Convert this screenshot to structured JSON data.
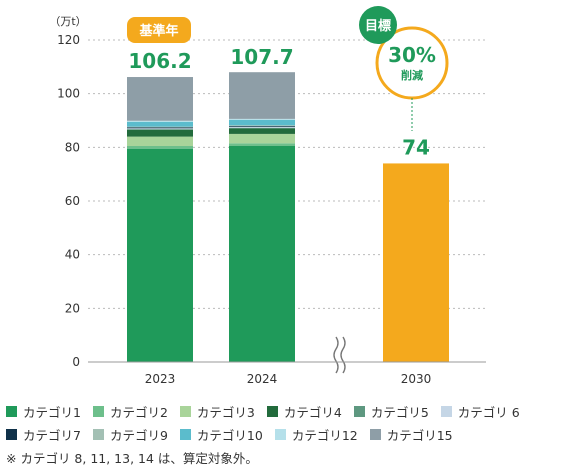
{
  "chart_data": {
    "type": "bar",
    "stacked": true,
    "unit_label": "（万t）",
    "ylim": [
      0,
      120
    ],
    "yticks": [
      "0",
      "20",
      "40",
      "60",
      "80",
      "100",
      "120"
    ],
    "categories": [
      "2023",
      "2024",
      "2030"
    ],
    "totals": [
      "106.2",
      "107.7",
      "74"
    ],
    "baseline_badge": "基準年",
    "target_badge": "目標",
    "reduction_pct": "30%",
    "reduction_label": "削減",
    "axis_break": true,
    "series": [
      {
        "name": "カテゴリ1",
        "color": "#1f9a5a",
        "values": [
          79.5,
          80.5,
          0
        ]
      },
      {
        "name": "カテゴリ2",
        "color": "#6dbf8b",
        "values": [
          1.0,
          1.0,
          0
        ]
      },
      {
        "name": "カテゴリ3",
        "color": "#a9d49a",
        "values": [
          3.5,
          3.5,
          0
        ]
      },
      {
        "name": "カテゴリ4",
        "color": "#226b3c",
        "values": [
          2.5,
          2.0,
          0
        ]
      },
      {
        "name": "カテゴリ5",
        "color": "#5e9880",
        "values": [
          0.3,
          0.3,
          0
        ]
      },
      {
        "name": "カテゴリ 6",
        "color": "#c5d6e6",
        "values": [
          0.3,
          0.3,
          0
        ]
      },
      {
        "name": "カテゴリ7",
        "color": "#0f3149",
        "values": [
          0.3,
          0.3,
          0
        ]
      },
      {
        "name": "カテゴリ9",
        "color": "#a3c0b4",
        "values": [
          0.3,
          0.3,
          0
        ]
      },
      {
        "name": "カテゴリ10",
        "color": "#5bbccc",
        "values": [
          1.8,
          2.0,
          0
        ]
      },
      {
        "name": "カテゴリ12",
        "color": "#b5e0ea",
        "values": [
          0.4,
          0.4,
          0
        ]
      },
      {
        "name": "カテゴリ15",
        "color": "#8e9ea7",
        "values": [
          16.3,
          17.4,
          0
        ]
      },
      {
        "name": "目標",
        "color": "#f4a91d",
        "values": [
          0,
          0,
          74
        ],
        "legend": false
      }
    ],
    "colors": {
      "accent": "#1f9a5a",
      "badge_orange": "#f4a91d",
      "grid": "#bbbbbb"
    }
  },
  "note": "※ カテゴリ 8, 11, 13, 14 は、算定対象外。"
}
